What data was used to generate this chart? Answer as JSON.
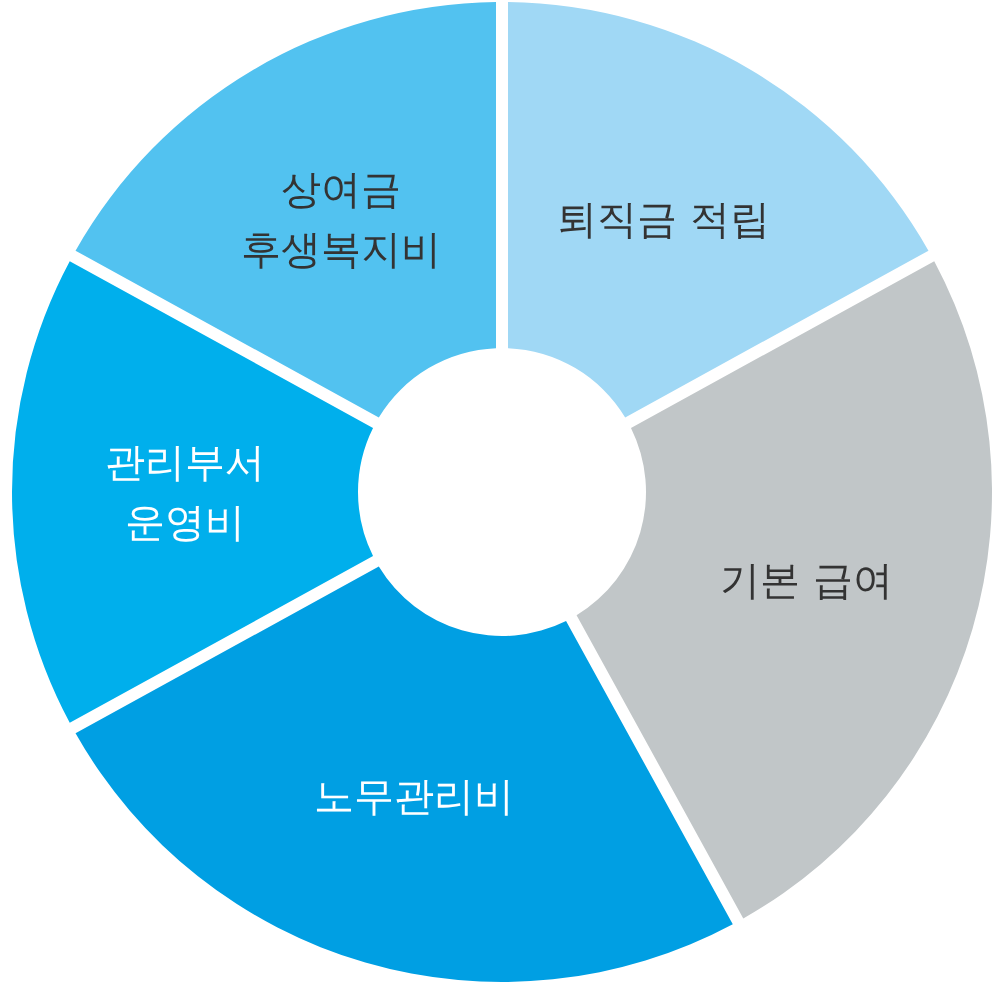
{
  "chart_data": {
    "type": "donut",
    "categories": [
      "퇴직금 적립",
      "기본 급여",
      "노무관리비",
      "관리부서\n운영비",
      "상여금\n후생복지비"
    ],
    "values": [
      17,
      25,
      25,
      16,
      17
    ],
    "colors": [
      "#a0d8f5",
      "#c1c6c8",
      "#009fe3",
      "#00afec",
      "#52c2f0"
    ]
  }
}
